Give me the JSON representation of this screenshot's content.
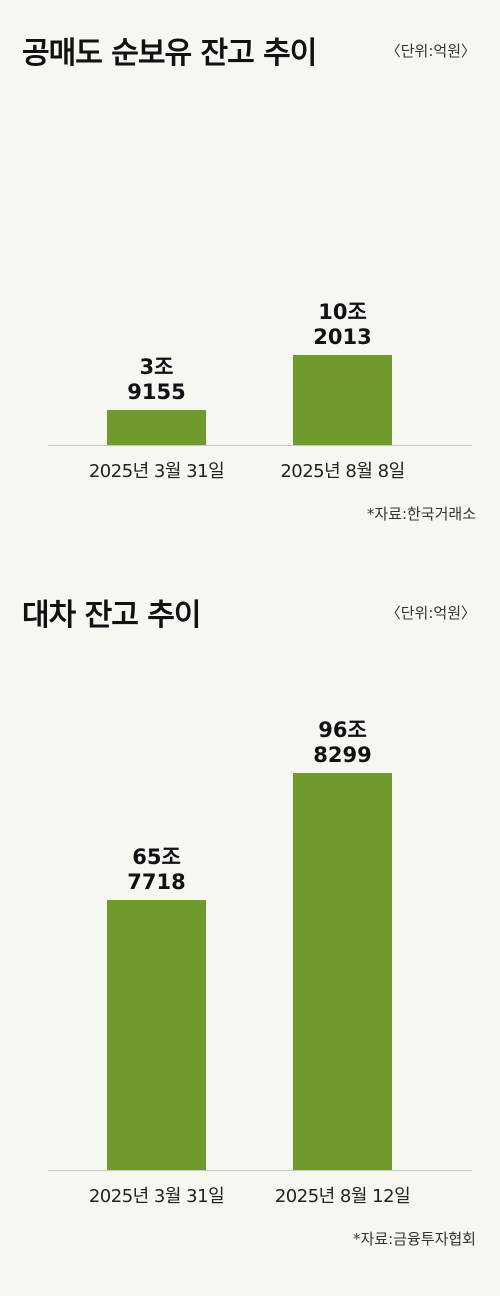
{
  "chart_data": [
    {
      "type": "bar",
      "title": "공매도 순보유 잔고 추이",
      "unit": "〈단위:억원〉",
      "categories": [
        "2025년 3월 31일",
        "2025년 8월 8일"
      ],
      "values": [
        39155,
        102013
      ],
      "value_labels": [
        "3조\n9155",
        "10조\n2013"
      ],
      "color": "#6e9a2e",
      "source": "*자료:한국거래소"
    },
    {
      "type": "bar",
      "title": "대차 잔고 추이",
      "unit": "〈단위:억원〉",
      "categories": [
        "2025년 3월 31일",
        "2025년 8월 12일"
      ],
      "values": [
        657718,
        968299
      ],
      "value_labels": [
        "65조\n7718",
        "96조\n8299"
      ],
      "color": "#6e9a2e",
      "source": "*자료:금융투자협회"
    }
  ]
}
